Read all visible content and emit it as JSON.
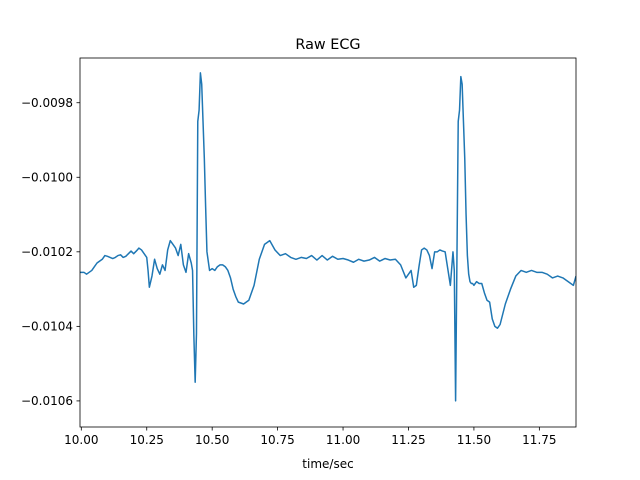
{
  "chart_data": {
    "type": "line",
    "title": "Raw ECG",
    "xlabel": "time/sec",
    "ylabel": "",
    "xlim": [
      9.995,
      11.89
    ],
    "ylim": [
      -0.01067,
      -0.00968
    ],
    "grid": false,
    "line_color": "#1f77b4",
    "xticks": [
      10.0,
      10.25,
      10.5,
      10.75,
      11.0,
      11.25,
      11.5,
      11.75
    ],
    "xtick_labels": [
      "10.00",
      "10.25",
      "10.50",
      "10.75",
      "11.00",
      "11.25",
      "11.50",
      "11.75"
    ],
    "yticks": [
      -0.0106,
      -0.0104,
      -0.0102,
      -0.01,
      -0.0098
    ],
    "ytick_labels": [
      "−0.0106",
      "−0.0104",
      "−0.0102",
      "−0.0100",
      "−0.0098"
    ],
    "series": [
      {
        "x": [
          9.995,
          10.01,
          10.02,
          10.03,
          10.04,
          10.05,
          10.06,
          10.07,
          10.08,
          10.09,
          10.1,
          10.11,
          10.12,
          10.13,
          10.14,
          10.15,
          10.16,
          10.17,
          10.18,
          10.19,
          10.2,
          10.21,
          10.22,
          10.23,
          10.24,
          10.25,
          10.255,
          10.26,
          10.27,
          10.28,
          10.29,
          10.3,
          10.31,
          10.32,
          10.33,
          10.34,
          10.35,
          10.36,
          10.37,
          10.38,
          10.39,
          10.4,
          10.41,
          10.42,
          10.425,
          10.43,
          10.435,
          10.44,
          10.445,
          10.45,
          10.455,
          10.46,
          10.465,
          10.47,
          10.475,
          10.48,
          10.49,
          10.5,
          10.51,
          10.52,
          10.53,
          10.54,
          10.55,
          10.56,
          10.57,
          10.58,
          10.59,
          10.6,
          10.62,
          10.64,
          10.66,
          10.68,
          10.7,
          10.72,
          10.74,
          10.76,
          10.78,
          10.8,
          10.82,
          10.84,
          10.86,
          10.88,
          10.9,
          10.92,
          10.94,
          10.96,
          10.98,
          11.0,
          11.02,
          11.04,
          11.06,
          11.08,
          11.1,
          11.12,
          11.14,
          11.16,
          11.18,
          11.2,
          11.22,
          11.24,
          11.26,
          11.27,
          11.28,
          11.29,
          11.3,
          11.31,
          11.32,
          11.33,
          11.34,
          11.35,
          11.36,
          11.37,
          11.38,
          11.39,
          11.4,
          11.41,
          11.42,
          11.425,
          11.43,
          11.44,
          11.445,
          11.45,
          11.455,
          11.46,
          11.465,
          11.47,
          11.475,
          11.48,
          11.485,
          11.49,
          11.495,
          11.5,
          11.51,
          11.52,
          11.53,
          11.54,
          11.55,
          11.56,
          11.57,
          11.58,
          11.59,
          11.6,
          11.62,
          11.64,
          11.66,
          11.68,
          11.7,
          11.72,
          11.74,
          11.76,
          11.78,
          11.8,
          11.82,
          11.84,
          11.86,
          11.87,
          11.88,
          11.89
        ],
        "y": [
          -0.010255,
          -0.010255,
          -0.01026,
          -0.010255,
          -0.01025,
          -0.01024,
          -0.01023,
          -0.010225,
          -0.01022,
          -0.01021,
          -0.010212,
          -0.010215,
          -0.010218,
          -0.010215,
          -0.01021,
          -0.010208,
          -0.010215,
          -0.010212,
          -0.010205,
          -0.010198,
          -0.010205,
          -0.010198,
          -0.01019,
          -0.010195,
          -0.010205,
          -0.010215,
          -0.01025,
          -0.010295,
          -0.010265,
          -0.01022,
          -0.010245,
          -0.01026,
          -0.010235,
          -0.01025,
          -0.010195,
          -0.01017,
          -0.01018,
          -0.01019,
          -0.01021,
          -0.01018,
          -0.010235,
          -0.010255,
          -0.010205,
          -0.01023,
          -0.01025,
          -0.010425,
          -0.01055,
          -0.01042,
          -0.00985,
          -0.00982,
          -0.00972,
          -0.00975,
          -0.00985,
          -0.00995,
          -0.01008,
          -0.0102,
          -0.01025,
          -0.010245,
          -0.01025,
          -0.01024,
          -0.010235,
          -0.010235,
          -0.01024,
          -0.01025,
          -0.01027,
          -0.0103,
          -0.01032,
          -0.010335,
          -0.01034,
          -0.01033,
          -0.01029,
          -0.01022,
          -0.01018,
          -0.01017,
          -0.010195,
          -0.01021,
          -0.010205,
          -0.010215,
          -0.01022,
          -0.010215,
          -0.010218,
          -0.01021,
          -0.010222,
          -0.01021,
          -0.010222,
          -0.010212,
          -0.01022,
          -0.010218,
          -0.010222,
          -0.010228,
          -0.01022,
          -0.010225,
          -0.010222,
          -0.010215,
          -0.010225,
          -0.010218,
          -0.010222,
          -0.01022,
          -0.010235,
          -0.01027,
          -0.01025,
          -0.010295,
          -0.01029,
          -0.01024,
          -0.010195,
          -0.01019,
          -0.010195,
          -0.01021,
          -0.010245,
          -0.0102,
          -0.0102,
          -0.010195,
          -0.010198,
          -0.0102,
          -0.010245,
          -0.01029,
          -0.0102,
          -0.01025,
          -0.0106,
          -0.00985,
          -0.00982,
          -0.00973,
          -0.00975,
          -0.00985,
          -0.00995,
          -0.0101,
          -0.01021,
          -0.01026,
          -0.01028,
          -0.010285,
          -0.010285,
          -0.01029,
          -0.01028,
          -0.010285,
          -0.010285,
          -0.01031,
          -0.01033,
          -0.010335,
          -0.01038,
          -0.0104,
          -0.010405,
          -0.010395,
          -0.01034,
          -0.0103,
          -0.010265,
          -0.01025,
          -0.010255,
          -0.01025,
          -0.010255,
          -0.010255,
          -0.01026,
          -0.01027,
          -0.010265,
          -0.01027,
          -0.01028,
          -0.010285,
          -0.01029,
          -0.010265
        ]
      }
    ]
  }
}
